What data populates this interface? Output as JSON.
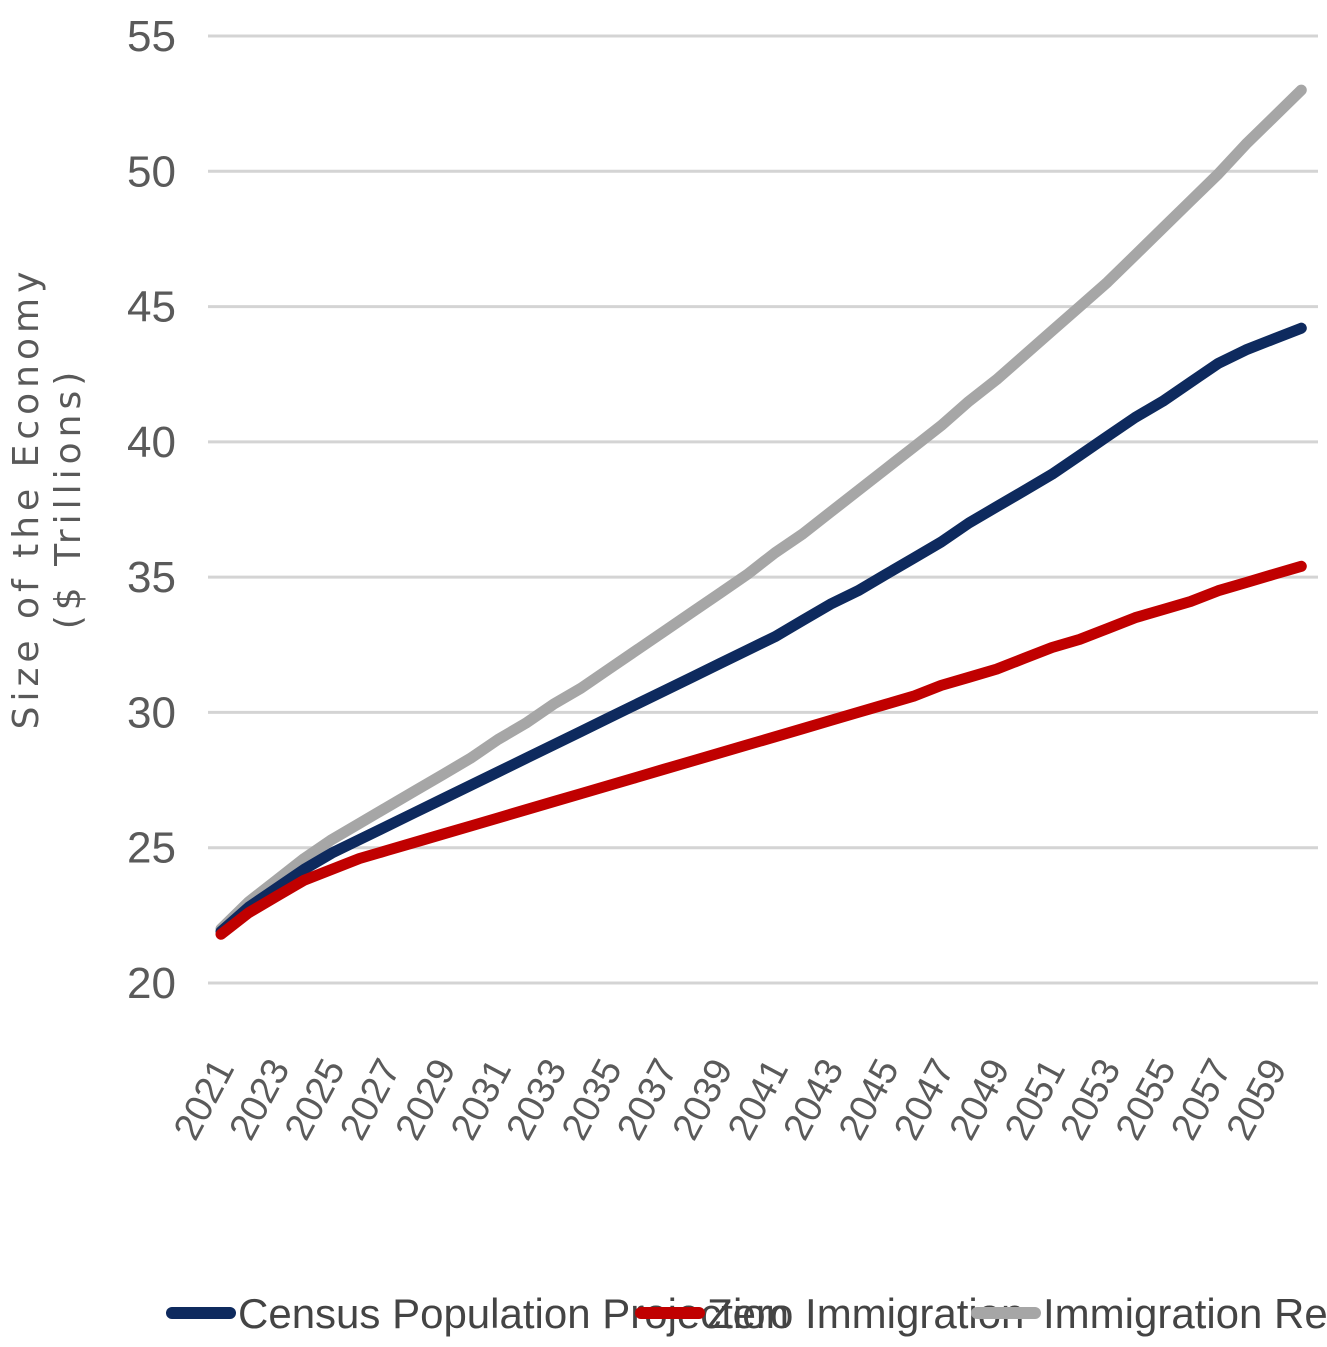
{
  "chart_data": {
    "type": "line",
    "title": "",
    "xlabel": "",
    "ylabel": [
      "Size of the Economy",
      "($ Trillions)"
    ],
    "ylim": [
      20,
      55
    ],
    "yticks": [
      "20",
      "25",
      "30",
      "35",
      "40",
      "45",
      "50",
      "55"
    ],
    "x": [
      2021,
      2022,
      2023,
      2024,
      2025,
      2026,
      2027,
      2028,
      2029,
      2030,
      2031,
      2032,
      2033,
      2034,
      2035,
      2036,
      2037,
      2038,
      2039,
      2040,
      2041,
      2042,
      2043,
      2044,
      2045,
      2046,
      2047,
      2048,
      2049,
      2050,
      2051,
      2052,
      2053,
      2054,
      2055,
      2056,
      2057,
      2058,
      2059,
      2060
    ],
    "xtick_labels": [
      "2021",
      "2023",
      "2025",
      "2027",
      "2029",
      "2031",
      "2033",
      "2035",
      "2037",
      "2039",
      "2041",
      "2043",
      "2045",
      "2047",
      "2049",
      "2051",
      "2053",
      "2055",
      "2057",
      "2059"
    ],
    "grid": true,
    "legend": "bottom",
    "series": [
      {
        "name": "Census Population Projection",
        "color": "#0e2a5e",
        "values": [
          21.9,
          22.8,
          23.5,
          24.2,
          24.8,
          25.3,
          25.8,
          26.3,
          26.8,
          27.3,
          27.8,
          28.3,
          28.8,
          29.3,
          29.8,
          30.3,
          30.8,
          31.3,
          31.8,
          32.3,
          32.8,
          33.4,
          34.0,
          34.5,
          35.1,
          35.7,
          36.3,
          37.0,
          37.6,
          38.2,
          38.8,
          39.5,
          40.2,
          40.9,
          41.5,
          42.2,
          42.9,
          43.4,
          43.8,
          44.2
        ]
      },
      {
        "name": "Zero Immigration",
        "color": "#c00000",
        "values": [
          21.8,
          22.6,
          23.2,
          23.8,
          24.2,
          24.6,
          24.9,
          25.2,
          25.5,
          25.8,
          26.1,
          26.4,
          26.7,
          27.0,
          27.3,
          27.6,
          27.9,
          28.2,
          28.5,
          28.8,
          29.1,
          29.4,
          29.7,
          30.0,
          30.3,
          30.6,
          31.0,
          31.3,
          31.6,
          32.0,
          32.4,
          32.7,
          33.1,
          33.5,
          33.8,
          34.1,
          34.5,
          34.8,
          35.1,
          35.4
        ]
      },
      {
        "name": "Immigration Reform",
        "color": "#a6a6a6",
        "values": [
          22.0,
          23.0,
          23.8,
          24.6,
          25.3,
          25.9,
          26.5,
          27.1,
          27.7,
          28.3,
          29.0,
          29.6,
          30.3,
          30.9,
          31.6,
          32.3,
          33.0,
          33.7,
          34.4,
          35.1,
          35.9,
          36.6,
          37.4,
          38.2,
          39.0,
          39.8,
          40.6,
          41.5,
          42.3,
          43.2,
          44.1,
          45.0,
          45.9,
          46.9,
          47.9,
          48.9,
          49.9,
          51.0,
          52.0,
          53.0
        ]
      }
    ]
  }
}
